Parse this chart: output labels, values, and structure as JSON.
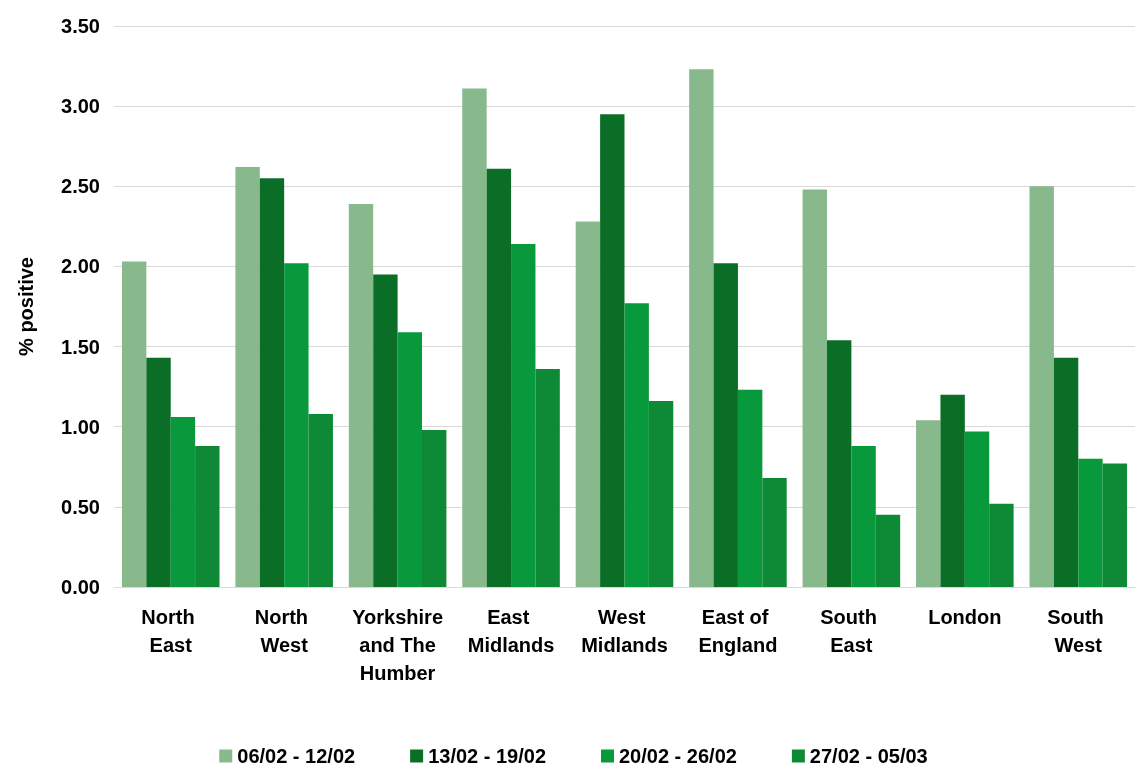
{
  "chart_data": {
    "type": "bar",
    "ylabel": "% positive",
    "categories": [
      "North East",
      "North West",
      "Yorkshire and The Humber",
      "East Midlands",
      "West Midlands",
      "East of England",
      "South East",
      "London",
      "South West"
    ],
    "series": [
      {
        "name": "06/02 - 12/02",
        "color": "#88b98c",
        "values": [
          2.03,
          2.62,
          2.39,
          3.11,
          2.28,
          3.23,
          2.48,
          1.04,
          2.5
        ]
      },
      {
        "name": "13/02 - 19/02",
        "color": "#0b6e27",
        "values": [
          1.43,
          2.55,
          1.95,
          2.61,
          2.95,
          2.02,
          1.54,
          1.2,
          1.43
        ]
      },
      {
        "name": "20/02 - 26/02",
        "color": "#07993b",
        "values": [
          1.06,
          2.02,
          1.59,
          2.14,
          1.77,
          1.23,
          0.88,
          0.97,
          0.8
        ]
      },
      {
        "name": "27/02 - 05/03",
        "color": "#0e8a36",
        "values": [
          0.88,
          1.08,
          0.98,
          1.36,
          1.16,
          0.68,
          0.45,
          0.52,
          0.77
        ]
      }
    ],
    "ylim": [
      0,
      3.5
    ],
    "yticks": [
      {
        "value": 0,
        "label": "0.00"
      },
      {
        "value": 0.5,
        "label": "0.50"
      },
      {
        "value": 1,
        "label": "1.00"
      },
      {
        "value": 1.5,
        "label": "1.50"
      },
      {
        "value": 2,
        "label": "2.00"
      },
      {
        "value": 2.5,
        "label": "2.50"
      },
      {
        "value": 3,
        "label": "3.00"
      },
      {
        "value": 3.5,
        "label": "3.50"
      }
    ],
    "grid": "y",
    "legend": "bottom"
  }
}
